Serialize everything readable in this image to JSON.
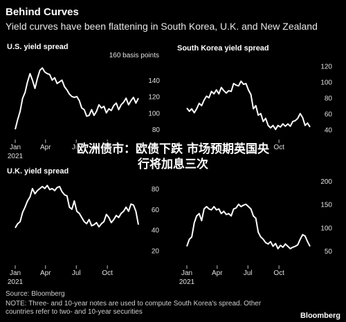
{
  "header": {
    "title": "Behind Curves",
    "subtitle": "Yield curves have been flattening in South Korea, U.K. and New Zealand"
  },
  "footer": {
    "source": "Source: Bloomberg",
    "note_line1": "NOTE: Three- and 10-year notes are used to compute South Korea's spread. Other",
    "note_line2": "countries refer to two- and 10-year securities",
    "brand": "Bloomberg"
  },
  "overlay": {
    "line1": "欧洲债市：欧债下跌 市场预期英国央",
    "line2": "行将加息三次"
  },
  "colors": {
    "background": "#000000",
    "line": "#ffffff"
  },
  "chart_data": [
    {
      "type": "line",
      "title": "U.S. yield spread",
      "unit_label": "160 basis points",
      "x_ticks": [
        "Jan\n2021",
        "Apr",
        "Jul",
        "Oct"
      ],
      "y_ticks": [
        80,
        100,
        120,
        140
      ],
      "ylim": [
        75,
        162
      ],
      "series": [
        {
          "values": [
            80,
            92,
            102,
            118,
            125,
            138,
            148,
            140,
            130,
            142,
            152,
            155,
            150,
            148,
            147,
            140,
            143,
            136,
            138,
            140,
            132,
            128,
            123,
            120,
            119,
            120,
            115,
            106,
            104,
            96,
            97,
            104,
            97,
            102,
            110,
            106,
            108,
            100,
            105,
            103,
            109,
            112,
            104,
            110,
            113,
            118,
            110,
            115,
            119,
            112,
            118
          ]
        }
      ]
    },
    {
      "type": "line",
      "title": "South Korea yield spread",
      "unit_label": "",
      "x_ticks": [
        "",
        "",
        "",
        "Oct"
      ],
      "y_ticks": [
        40,
        60,
        80,
        100,
        120
      ],
      "ylim": [
        35,
        125
      ],
      "series": [
        {
          "values": [
            67,
            63,
            66,
            61,
            66,
            73,
            70,
            77,
            82,
            80,
            88,
            85,
            90,
            85,
            93,
            89,
            86,
            89,
            88,
            98,
            96,
            95,
            101,
            97,
            98,
            90,
            84,
            66,
            70,
            58,
            60,
            50,
            54,
            45,
            42,
            45,
            40,
            45,
            43,
            47,
            44,
            47,
            44,
            50,
            51,
            54,
            60,
            55,
            45,
            48,
            43
          ]
        }
      ]
    },
    {
      "type": "line",
      "title": "U.K. yield spread",
      "unit_label": "",
      "x_ticks": [
        "Jan\n2021",
        "Apr",
        "Jul",
        "Oct"
      ],
      "y_ticks": [
        20,
        40,
        60,
        80
      ],
      "ylim": [
        15,
        92
      ],
      "series": [
        {
          "values": [
            42,
            46,
            48,
            57,
            62,
            68,
            72,
            80,
            75,
            78,
            80,
            82,
            80,
            83,
            79,
            80,
            78,
            81,
            82,
            77,
            74,
            73,
            62,
            60,
            68,
            58,
            56,
            52,
            48,
            46,
            50,
            44,
            45,
            47,
            43,
            46,
            48,
            55,
            52,
            47,
            50,
            54,
            52,
            56,
            58,
            62,
            58,
            65,
            64,
            58,
            45
          ]
        }
      ]
    },
    {
      "type": "line",
      "title": "",
      "unit_label": "",
      "x_ticks": [
        "Jan\n2021",
        "Apr",
        "Jul",
        "Oct"
      ],
      "y_ticks": [
        50,
        100,
        150,
        200
      ],
      "ylim": [
        40,
        210
      ],
      "series": [
        {
          "values": [
            60,
            75,
            80,
            110,
            125,
            130,
            115,
            140,
            145,
            140,
            138,
            145,
            138,
            140,
            130,
            135,
            128,
            130,
            125,
            140,
            142,
            150,
            145,
            148,
            150,
            145,
            140,
            125,
            120,
            90,
            80,
            75,
            68,
            65,
            70,
            60,
            66,
            55,
            62,
            58,
            65,
            60,
            55,
            58,
            60,
            63,
            75,
            85,
            82,
            70,
            60
          ]
        }
      ]
    }
  ]
}
